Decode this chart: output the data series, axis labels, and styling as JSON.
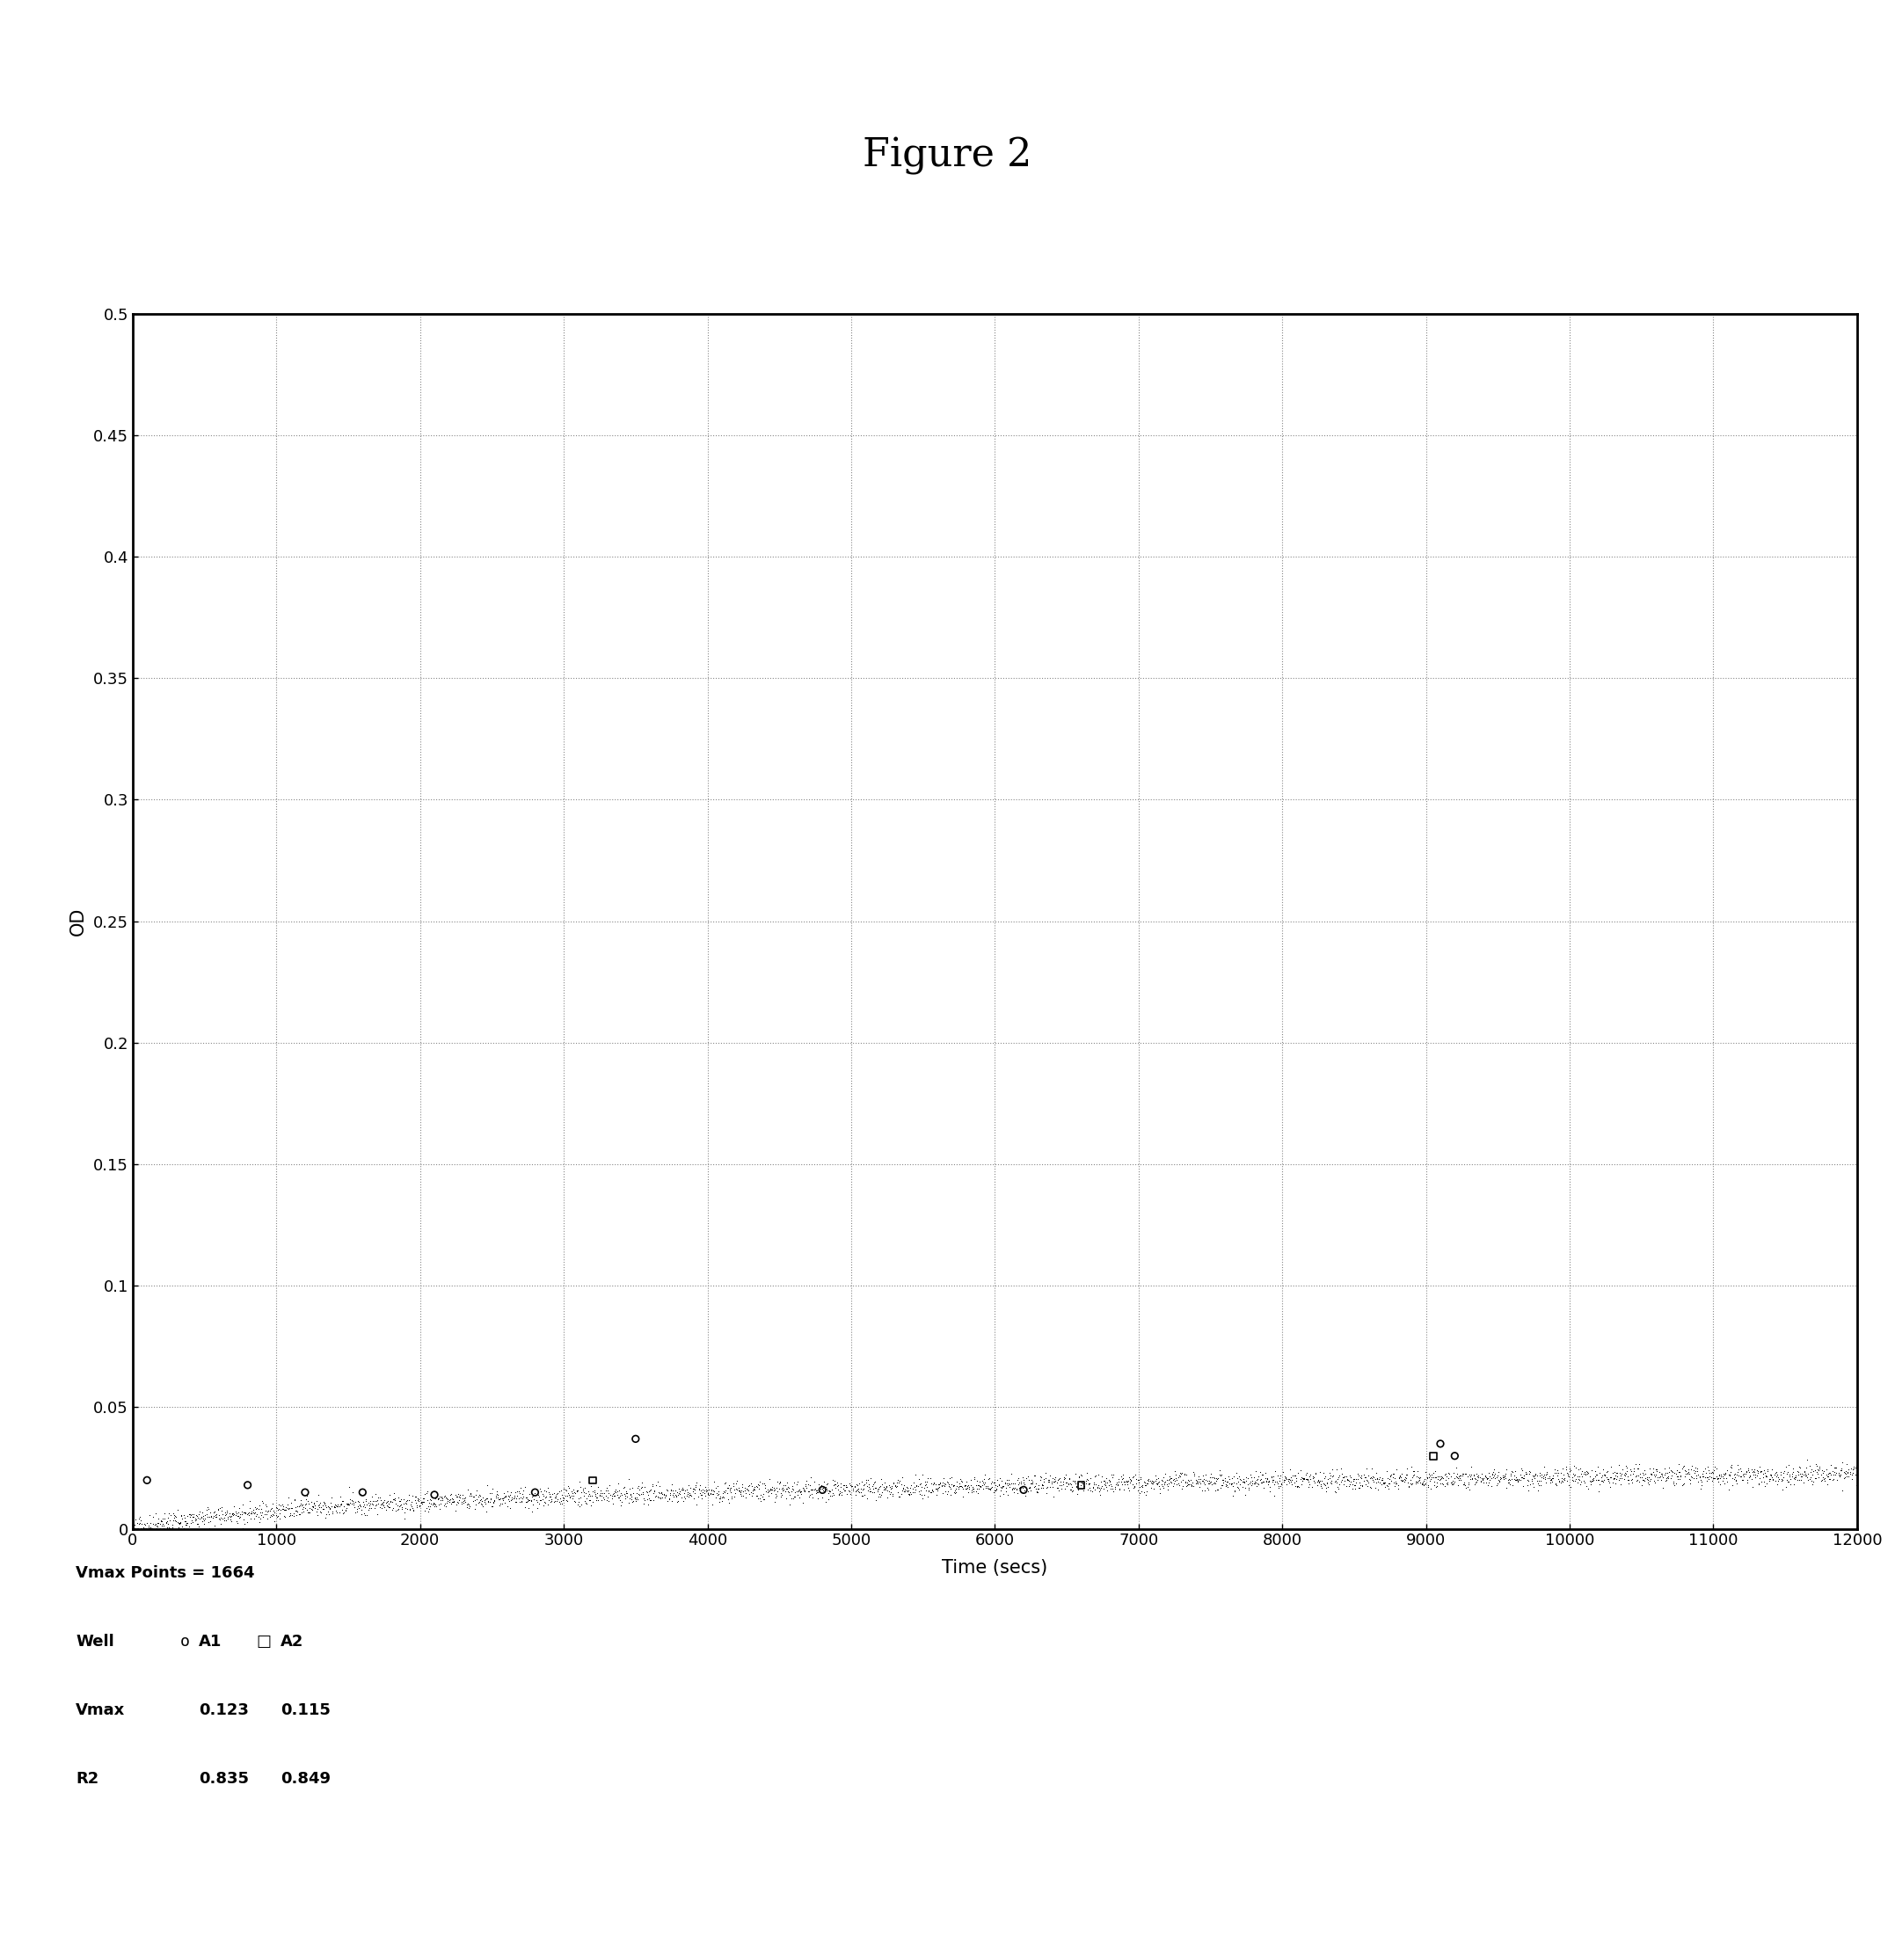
{
  "title": "Figure 2",
  "xlabel": "Time (secs)",
  "ylabel": "OD",
  "xlim": [
    0,
    12000
  ],
  "ylim": [
    0,
    0.5
  ],
  "xticks": [
    0,
    1000,
    2000,
    3000,
    4000,
    5000,
    6000,
    7000,
    8000,
    9000,
    10000,
    11000,
    12000
  ],
  "yticks": [
    0,
    0.05,
    0.1,
    0.15,
    0.2,
    0.25,
    0.3,
    0.35,
    0.4,
    0.45,
    0.5
  ],
  "ytick_labels": [
    "0",
    "0.05",
    "0.1",
    "0.15",
    "0.2",
    "0.25",
    "0.3",
    "0.35",
    "0.4",
    "0.45",
    "0.5"
  ],
  "vmax_points": 1664,
  "well_A1_label": "A1",
  "well_A2_label": "A2",
  "vmax_A1": "0.123",
  "vmax_A2": "0.115",
  "r2_A1": "0.835",
  "r2_A2": "0.849",
  "background_color": "#ffffff",
  "line_color": "#000000",
  "title_fontsize": 32,
  "axis_label_fontsize": 15,
  "tick_label_fontsize": 13,
  "annotation_fontsize": 13
}
